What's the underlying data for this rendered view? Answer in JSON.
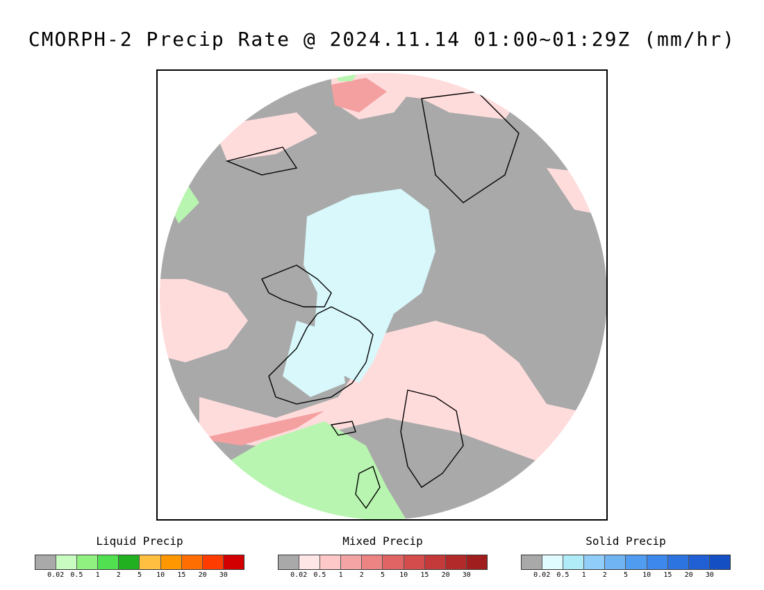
{
  "title": "CMORPH-2 Precip Rate @ 2024.11.14 01:00~01:29Z (mm/hr)",
  "map": {
    "projection": "north-polar-stereographic",
    "colors": {
      "no_precip": "#a9a9a9",
      "ocean_frame": "#ffffff",
      "coast": "#000000",
      "liquid_light": "#b8f5b0",
      "mixed_light": "#ffdcdc",
      "mixed_mid": "#f4a0a0",
      "solid_light": "#d8f8fc"
    }
  },
  "legends": [
    {
      "title": "Liquid Precip",
      "tick_labels": [
        "0.02",
        "0.5",
        "1",
        "2",
        "5",
        "10",
        "15",
        "20",
        "30"
      ],
      "colors": [
        "#a9a9a9",
        "#c8fcc0",
        "#90f080",
        "#50e050",
        "#20b020",
        "#ffbf40",
        "#ff9800",
        "#ff6e00",
        "#ff3c00",
        "#d20000"
      ]
    },
    {
      "title": "Mixed Precip",
      "tick_labels": [
        "0.02",
        "0.5",
        "1",
        "2",
        "5",
        "10",
        "15",
        "20",
        "30"
      ],
      "colors": [
        "#a9a9a9",
        "#ffe6e6",
        "#ffc8c8",
        "#f4a4a4",
        "#ec8484",
        "#e06464",
        "#d44c4c",
        "#c43a3a",
        "#b22a2a",
        "#a01e1e"
      ]
    },
    {
      "title": "Solid Precip",
      "tick_labels": [
        "0.02",
        "0.5",
        "1",
        "2",
        "5",
        "10",
        "15",
        "20",
        "30"
      ],
      "colors": [
        "#a9a9a9",
        "#e0fcff",
        "#b0ecf8",
        "#90cdf8",
        "#70b4f4",
        "#509cf0",
        "#3c88ec",
        "#2c74e0",
        "#2060d4",
        "#1450c4"
      ]
    }
  ]
}
